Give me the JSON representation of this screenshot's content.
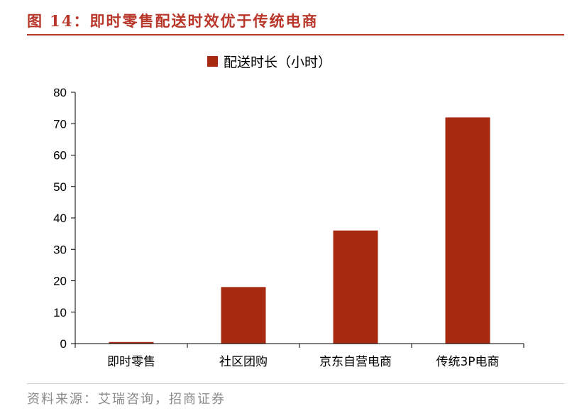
{
  "figure": {
    "title": "图 14：即时零售配送时效优于传统电商",
    "source": "资料来源：艾瑞咨询，招商证券"
  },
  "chart_data": {
    "type": "bar",
    "categories": [
      "即时零售",
      "社区团购",
      "京东自营电商",
      "传统3P电商"
    ],
    "series": [
      {
        "name": "配送时长（小时）",
        "values": [
          0.5,
          18,
          36,
          72
        ],
        "color": "#a52a0f"
      }
    ],
    "ylim": [
      0,
      80
    ],
    "yticks": [
      0,
      10,
      20,
      30,
      40,
      50,
      60,
      70,
      80
    ],
    "xlabel": "",
    "ylabel": "",
    "grid": false,
    "legend": "top-center"
  }
}
